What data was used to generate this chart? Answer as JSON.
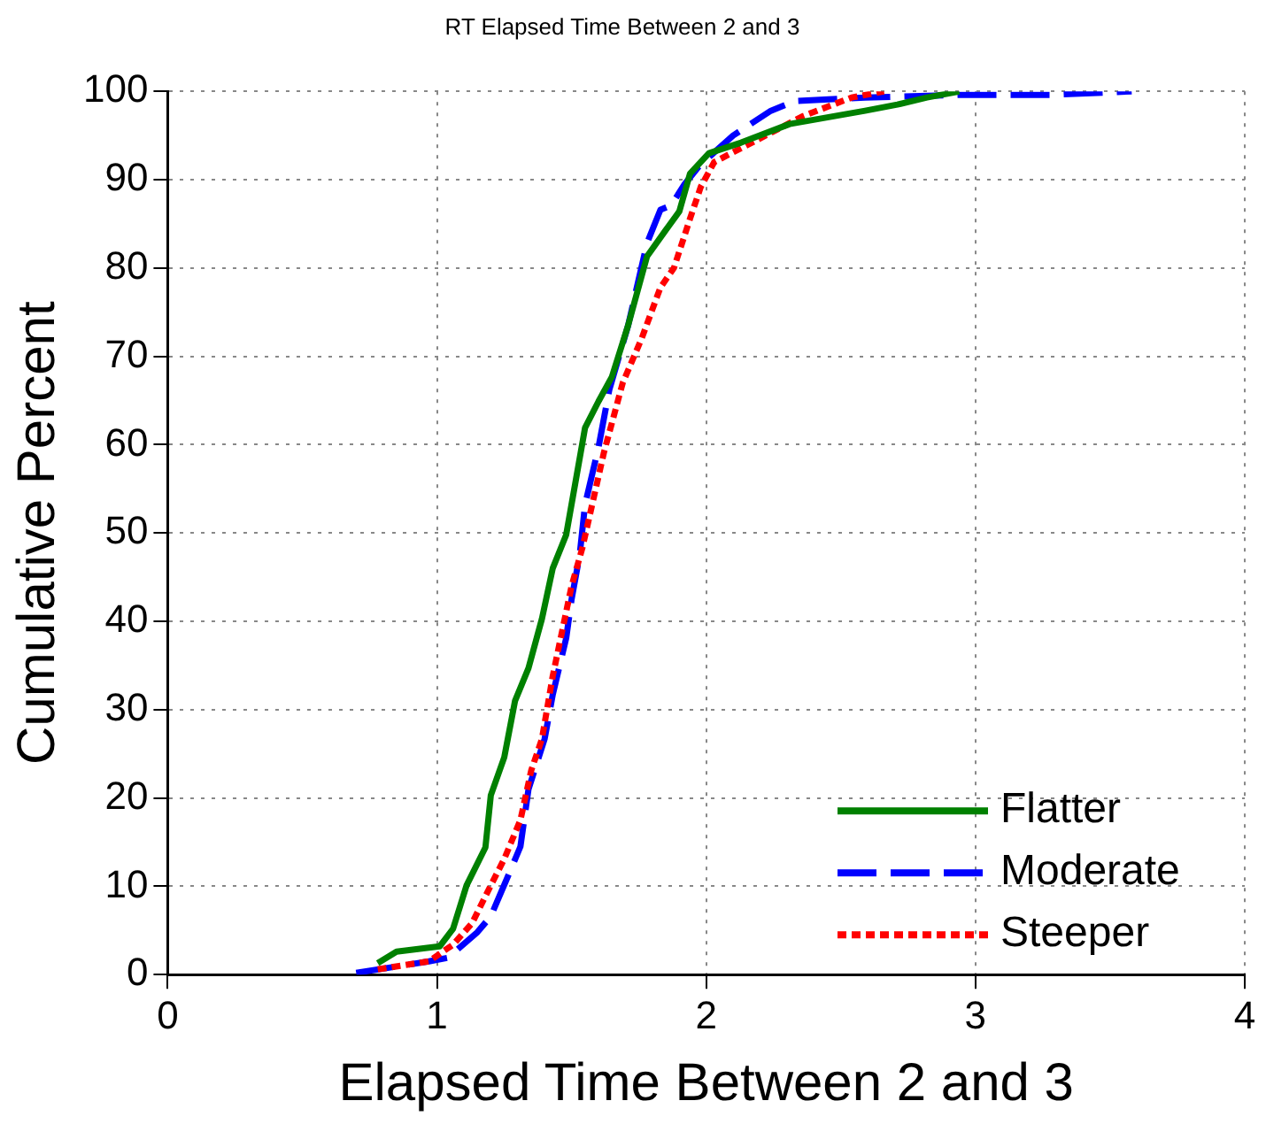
{
  "chart_data": {
    "type": "line",
    "title": "RT Elapsed Time Between 2 and 3",
    "xlabel": "Elapsed Time Between 2 and 3",
    "ylabel": "Cumulative Percent",
    "xlim": [
      0,
      4
    ],
    "xticks": [
      0,
      1,
      2,
      3,
      4
    ],
    "ylim": [
      0,
      100
    ],
    "yticks": [
      0,
      10,
      20,
      30,
      40,
      50,
      60,
      70,
      80,
      90,
      100
    ],
    "grid": true,
    "legend": "bottom right",
    "marker": "none",
    "series": [
      {
        "name": "Flatter",
        "color": "#008000",
        "line_style": "solid",
        "x": [
          0.78,
          0.85,
          1.01,
          1.06,
          1.11,
          1.18,
          1.2,
          1.25,
          1.29,
          1.34,
          1.39,
          1.43,
          1.48,
          1.55,
          1.6,
          1.65,
          1.71,
          1.78,
          1.85,
          1.9,
          1.94,
          2.01,
          2.13,
          2.31,
          2.59,
          2.71,
          2.82,
          2.94
        ],
        "values": [
          1.3,
          2.6,
          3.2,
          5.2,
          10.1,
          14.4,
          20.3,
          24.6,
          31,
          34.7,
          40.3,
          46,
          49.8,
          61.9,
          64.9,
          67.7,
          73.5,
          81.3,
          84.3,
          86.4,
          90.7,
          93,
          94.2,
          96.3,
          97.8,
          98.5,
          99.3,
          100
        ]
      },
      {
        "name": "Moderate",
        "color": "#0000ff",
        "line_style": "dashed",
        "x": [
          0.7,
          0.97,
          1.04,
          1.15,
          1.2,
          1.27,
          1.31,
          1.34,
          1.4,
          1.43,
          1.48,
          1.5,
          1.53,
          1.55,
          1.6,
          1.64,
          1.71,
          1.78,
          1.83,
          1.87,
          1.92,
          1.97,
          2.03,
          2.1,
          2.24,
          2.33,
          2.59,
          2.94,
          3.28,
          3.58
        ],
        "values": [
          0.2,
          1.5,
          1.9,
          4.8,
          6.6,
          11.6,
          14.5,
          21,
          26.7,
          31.7,
          38.1,
          42.5,
          47.5,
          53.2,
          59.7,
          66.2,
          73.5,
          82.8,
          86.6,
          87.1,
          89.5,
          91.4,
          93.1,
          95,
          97.8,
          98.9,
          99.3,
          99.6,
          99.6,
          100
        ]
      },
      {
        "name": "Steeper",
        "color": "#ff0000",
        "line_style": "dotted",
        "x": [
          0.78,
          0.97,
          1.06,
          1.13,
          1.2,
          1.25,
          1.31,
          1.35,
          1.39,
          1.43,
          1.5,
          1.54,
          1.62,
          1.69,
          1.76,
          1.83,
          1.88,
          1.94,
          1.98,
          2.03,
          2.17,
          2.36,
          2.54,
          2.66
        ],
        "values": [
          0.6,
          1.5,
          3.4,
          5.8,
          10.1,
          13.1,
          17.5,
          23.1,
          26.7,
          33.8,
          44,
          48.3,
          59.1,
          67,
          72,
          77.8,
          80,
          85.6,
          89.2,
          92,
          94.2,
          97.2,
          99.3,
          100
        ]
      }
    ]
  }
}
